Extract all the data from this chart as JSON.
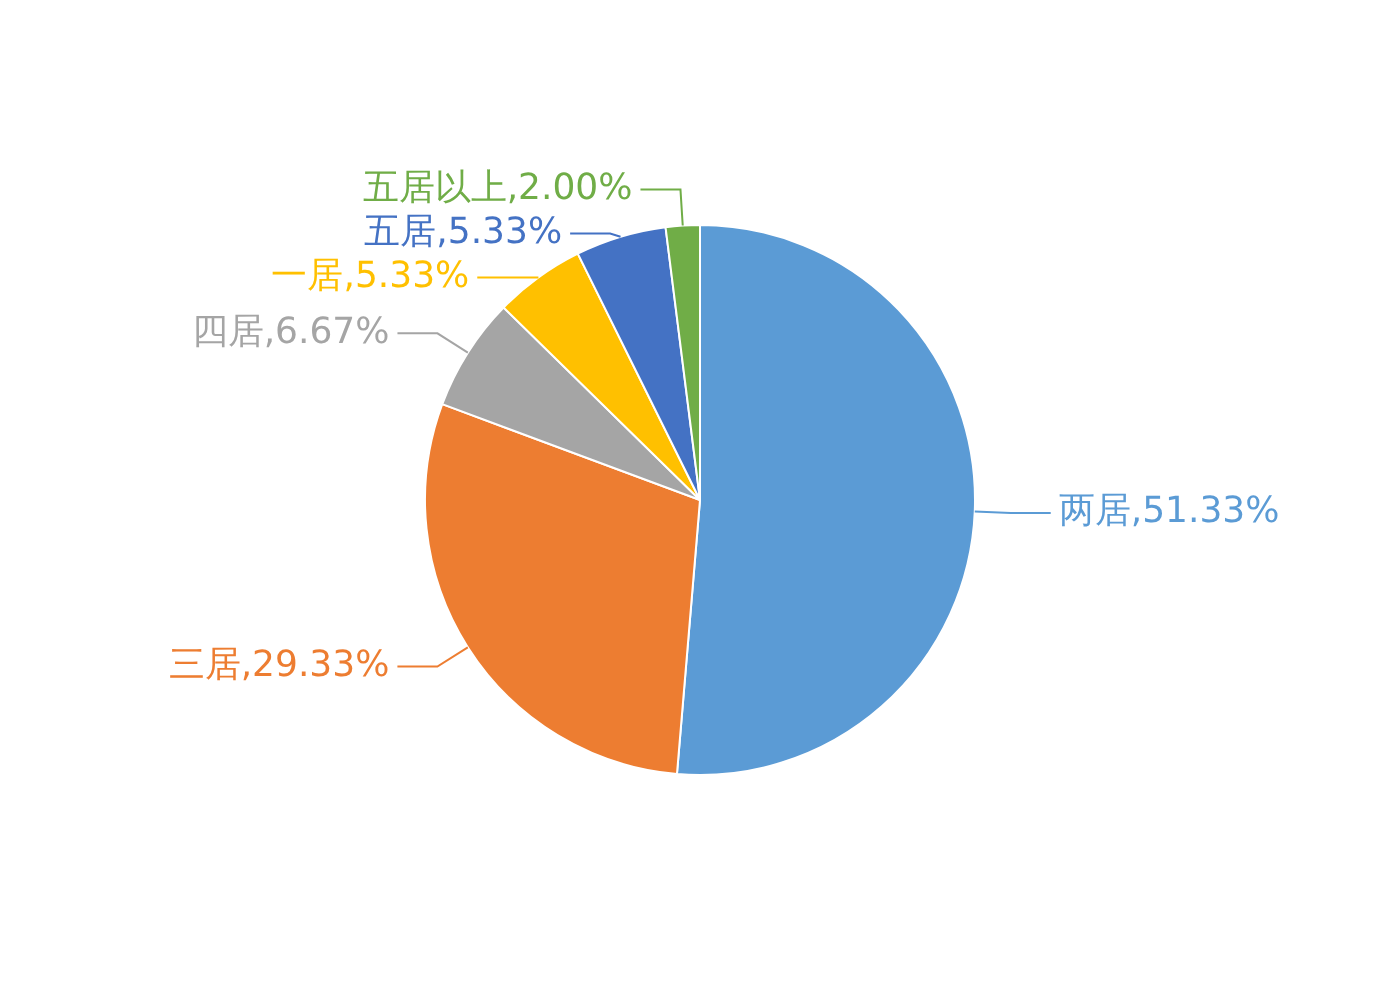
{
  "chart_data": {
    "type": "pie",
    "categories": [
      "两居",
      "三居",
      "四居",
      "一居",
      "五居",
      "五居以上"
    ],
    "values": [
      51.33,
      29.33,
      6.67,
      5.33,
      5.33,
      2.0
    ],
    "value_labels": [
      "51.33%",
      "29.33%",
      "6.67%",
      "5.33%",
      "5.33%",
      "2.00%"
    ],
    "colors": [
      "#5b9bd5",
      "#ed7d31",
      "#a5a5a5",
      "#ffc000",
      "#4472c4",
      "#70ad47"
    ],
    "legend": false
  }
}
